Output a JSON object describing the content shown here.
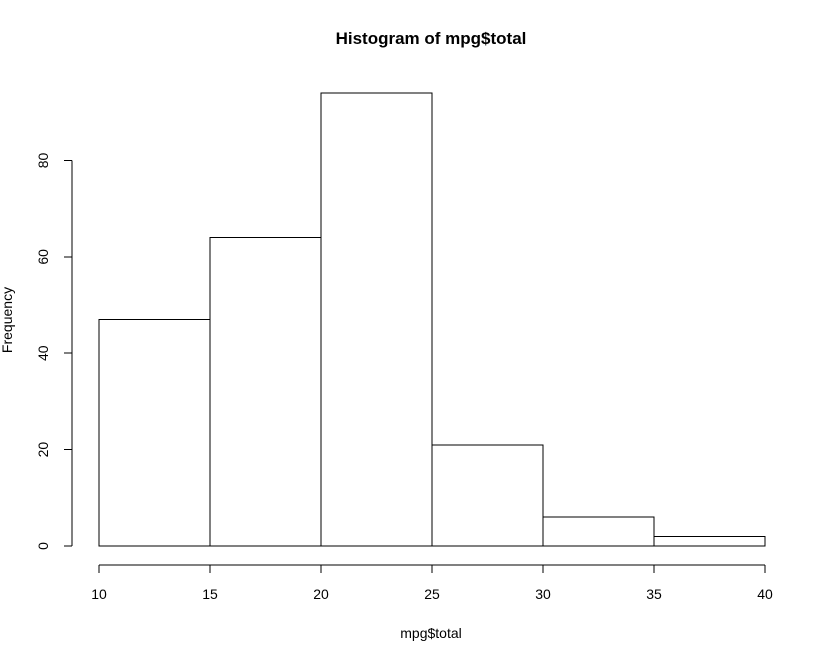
{
  "chart_data": {
    "type": "bar",
    "subtype": "histogram",
    "title": "Histogram of mpg$total",
    "xlabel": "mpg$total",
    "ylabel": "Frequency",
    "bins": [
      {
        "start": 10,
        "end": 15,
        "count": 47
      },
      {
        "start": 15,
        "end": 20,
        "count": 64
      },
      {
        "start": 20,
        "end": 25,
        "count": 94
      },
      {
        "start": 25,
        "end": 30,
        "count": 21
      },
      {
        "start": 30,
        "end": 35,
        "count": 6
      },
      {
        "start": 35,
        "end": 40,
        "count": 2
      }
    ],
    "xlim": [
      10,
      40
    ],
    "ylim": [
      0,
      94
    ],
    "x_ticks": [
      "10",
      "15",
      "20",
      "25",
      "30",
      "35",
      "40"
    ],
    "y_ticks": [
      "0",
      "20",
      "40",
      "60",
      "80"
    ],
    "grid": false,
    "bar_fill": "#ffffff",
    "bar_stroke": "#000000"
  }
}
